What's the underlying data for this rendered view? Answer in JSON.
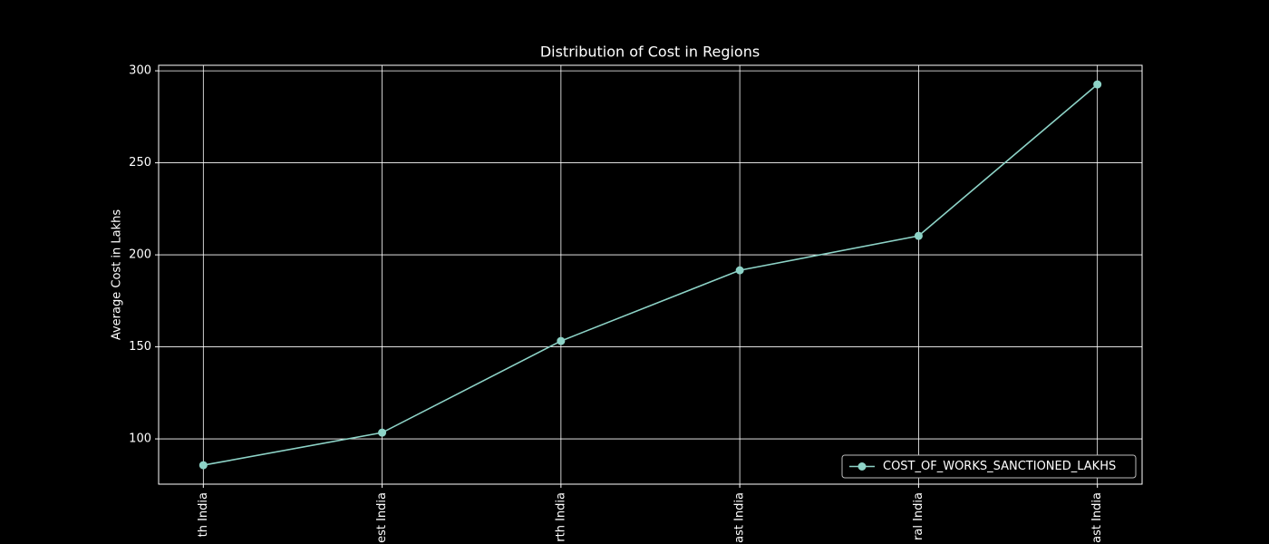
{
  "chart_data": {
    "type": "line",
    "title": "Distribution of Cost in Regions",
    "y_label": "Average Cost in Lakhs",
    "categories": [
      "th India",
      "est India",
      "rth India",
      "ast India",
      "ral India",
      "ast India"
    ],
    "series": [
      {
        "name": "COST_OF_WORKS_SANCTIONED_LAKHS",
        "color": "#8dd3c7",
        "values": [
          85.7,
          103.4,
          153.2,
          191.6,
          210.3,
          292.6
        ]
      }
    ],
    "ylim": [
      75.4,
      303
    ],
    "yticks": [
      100,
      150,
      200,
      250,
      300
    ],
    "grid": true,
    "legend": "lower right"
  }
}
